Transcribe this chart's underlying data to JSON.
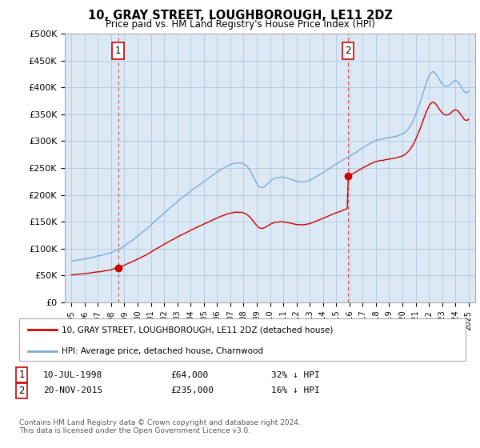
{
  "title": "10, GRAY STREET, LOUGHBOROUGH, LE11 2DZ",
  "subtitle": "Price paid vs. HM Land Registry's House Price Index (HPI)",
  "background_color": "#ffffff",
  "plot_bg_color": "#dce9f5",
  "grid_color": "#b0c8e0",
  "sale1_x": 1998.53,
  "sale1_y": 64000,
  "sale1_date_str": "10-JUL-1998",
  "sale1_amount_str": "£64,000",
  "sale1_pct_str": "32% ↓ HPI",
  "sale2_x": 2015.88,
  "sale2_y": 235000,
  "sale2_date_str": "20-NOV-2015",
  "sale2_amount_str": "£235,000",
  "sale2_pct_str": "16% ↓ HPI",
  "ylim": [
    0,
    500000
  ],
  "xlim_min": 1994.5,
  "xlim_max": 2025.5,
  "legend_label_red": "10, GRAY STREET, LOUGHBOROUGH, LE11 2DZ (detached house)",
  "legend_label_blue": "HPI: Average price, detached house, Charnwood",
  "footer": "Contains HM Land Registry data © Crown copyright and database right 2024.\nThis data is licensed under the Open Government Licence v3.0.",
  "red_color": "#cc0000",
  "blue_color": "#7aacdb",
  "yticks": [
    0,
    50000,
    100000,
    150000,
    200000,
    250000,
    300000,
    350000,
    400000,
    450000,
    500000
  ],
  "ytick_labels": [
    "£0",
    "£50K",
    "£100K",
    "£150K",
    "£200K",
    "£250K",
    "£300K",
    "£350K",
    "£400K",
    "£450K",
    "£500K"
  ]
}
